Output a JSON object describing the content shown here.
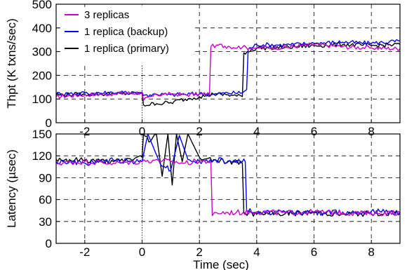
{
  "chart_data": [
    {
      "id": "throughput",
      "type": "line",
      "ylabel": "Thpt (K txns/sec)",
      "xlabel": "",
      "xlim": [
        -3,
        9
      ],
      "ylim": [
        0,
        500
      ],
      "xticks": [
        -2,
        0,
        2,
        4,
        6,
        8
      ],
      "yticks": [
        0,
        100,
        200,
        300,
        400,
        500
      ],
      "grid": true,
      "legend": "top-left",
      "series": [
        {
          "name": "3 replicas",
          "color": "#cc00cc",
          "x": [
            -3,
            -2,
            -1,
            0,
            0.05,
            0.5,
            1,
            1.5,
            2,
            2.35,
            2.4,
            2.6,
            3,
            3.5,
            4,
            5,
            6,
            7,
            8,
            9
          ],
          "y": [
            110,
            118,
            122,
            128,
            95,
            118,
            122,
            118,
            120,
            122,
            320,
            328,
            322,
            318,
            316,
            318,
            330,
            320,
            316,
            312
          ]
        },
        {
          "name": "1 replica (backup)",
          "color": "#0000ff",
          "x": [
            -3,
            -2,
            -1,
            0,
            0.05,
            0.5,
            1,
            1.5,
            2,
            2.5,
            3,
            3.5,
            3.65,
            3.7,
            4,
            5,
            6,
            7,
            8,
            9
          ],
          "y": [
            122,
            125,
            124,
            130,
            115,
            120,
            118,
            120,
            122,
            120,
            125,
            126,
            140,
            310,
            330,
            328,
            335,
            340,
            335,
            345
          ]
        },
        {
          "name": "1 replica (primary)",
          "color": "#000000",
          "x": [
            -3,
            -2,
            -1,
            0,
            0.05,
            0.5,
            1,
            1.5,
            2,
            2.5,
            3,
            3.3,
            3.5,
            3.55,
            4,
            5,
            6,
            7,
            8,
            9
          ],
          "y": [
            118,
            120,
            122,
            124,
            75,
            80,
            85,
            100,
            110,
            120,
            118,
            112,
            110,
            295,
            315,
            318,
            325,
            330,
            325,
            330
          ]
        }
      ]
    },
    {
      "id": "latency",
      "type": "line",
      "ylabel": "Latency (µsec)",
      "xlabel": "Time (sec)",
      "xlim": [
        -3,
        9
      ],
      "ylim": [
        0,
        150
      ],
      "xticks": [
        -2,
        0,
        2,
        4,
        6,
        8
      ],
      "yticks": [
        0,
        30,
        60,
        90,
        120,
        150
      ],
      "grid": true,
      "series": [
        {
          "name": "3 replicas",
          "color": "#cc00cc",
          "x": [
            -3,
            -2,
            -1,
            0,
            0.5,
            1,
            1.5,
            2,
            2.4,
            2.45,
            2.6,
            3,
            4,
            5,
            6,
            7,
            8,
            9
          ],
          "y": [
            110,
            112,
            110,
            112,
            115,
            112,
            110,
            113,
            112,
            38,
            42,
            42,
            43,
            42,
            43,
            42,
            41,
            42
          ]
        },
        {
          "name": "1 replica (backup)",
          "color": "#0000ff",
          "x": [
            -3,
            -2,
            -1,
            0,
            0.2,
            0.6,
            1,
            1.3,
            1.6,
            2,
            2.5,
            3,
            3.5,
            3.6,
            3.65,
            4,
            5,
            6,
            7,
            8,
            9
          ],
          "y": [
            112,
            110,
            114,
            112,
            150,
            112,
            100,
            148,
            115,
            112,
            114,
            113,
            112,
            112,
            45,
            42,
            43,
            42,
            43,
            44,
            42
          ]
        },
        {
          "name": "1 replica (primary)",
          "color": "#000000",
          "x": [
            -3,
            -2,
            -1,
            0,
            0.05,
            0.3,
            0.5,
            0.7,
            0.9,
            1.05,
            1.2,
            1.4,
            1.6,
            2,
            2.5,
            3,
            3.5,
            3.55,
            4,
            5,
            6,
            7,
            8,
            9
          ],
          "y": [
            115,
            114,
            112,
            118,
            150,
            140,
            150,
            92,
            150,
            80,
            150,
            112,
            150,
            118,
            115,
            112,
            110,
            42,
            40,
            41,
            42,
            40,
            41,
            42
          ]
        }
      ]
    }
  ]
}
